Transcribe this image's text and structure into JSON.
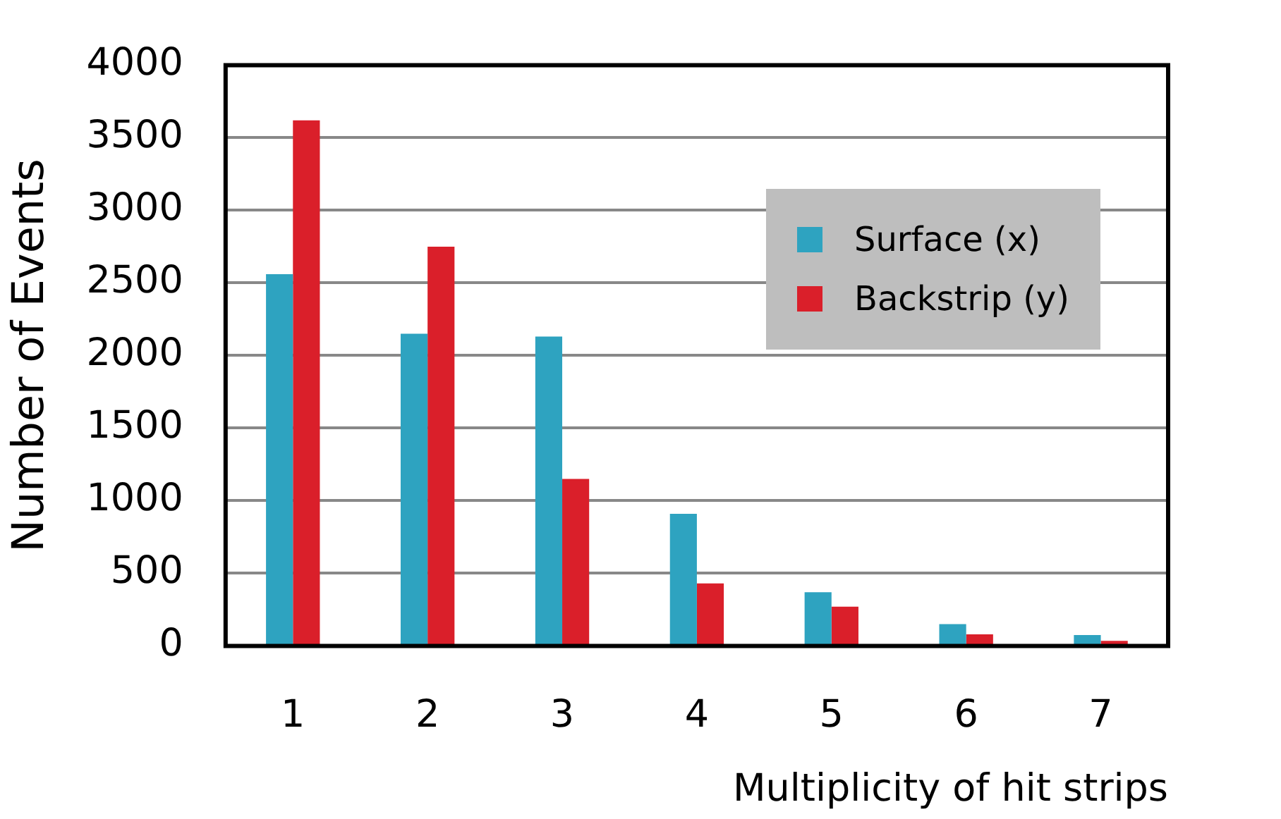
{
  "chart_data": {
    "type": "bar",
    "xlabel": "Multiplicity of hit strips",
    "ylabel": "Number of Events",
    "categories": [
      "1",
      "2",
      "3",
      "4",
      "5",
      "6",
      "7"
    ],
    "series": [
      {
        "name": "Surface (x)",
        "color": "#2ea3c0",
        "values": [
          2560,
          2150,
          2130,
          910,
          370,
          150,
          75
        ]
      },
      {
        "name": "Backstrip (y)",
        "color": "#da1f2a",
        "values": [
          3620,
          2750,
          1150,
          430,
          270,
          80,
          35
        ]
      }
    ],
    "ylim": [
      0,
      4000
    ],
    "yticks": [
      0,
      500,
      1000,
      1500,
      2000,
      2500,
      3000,
      3500,
      4000
    ],
    "grid": "y",
    "legend": "top right"
  }
}
